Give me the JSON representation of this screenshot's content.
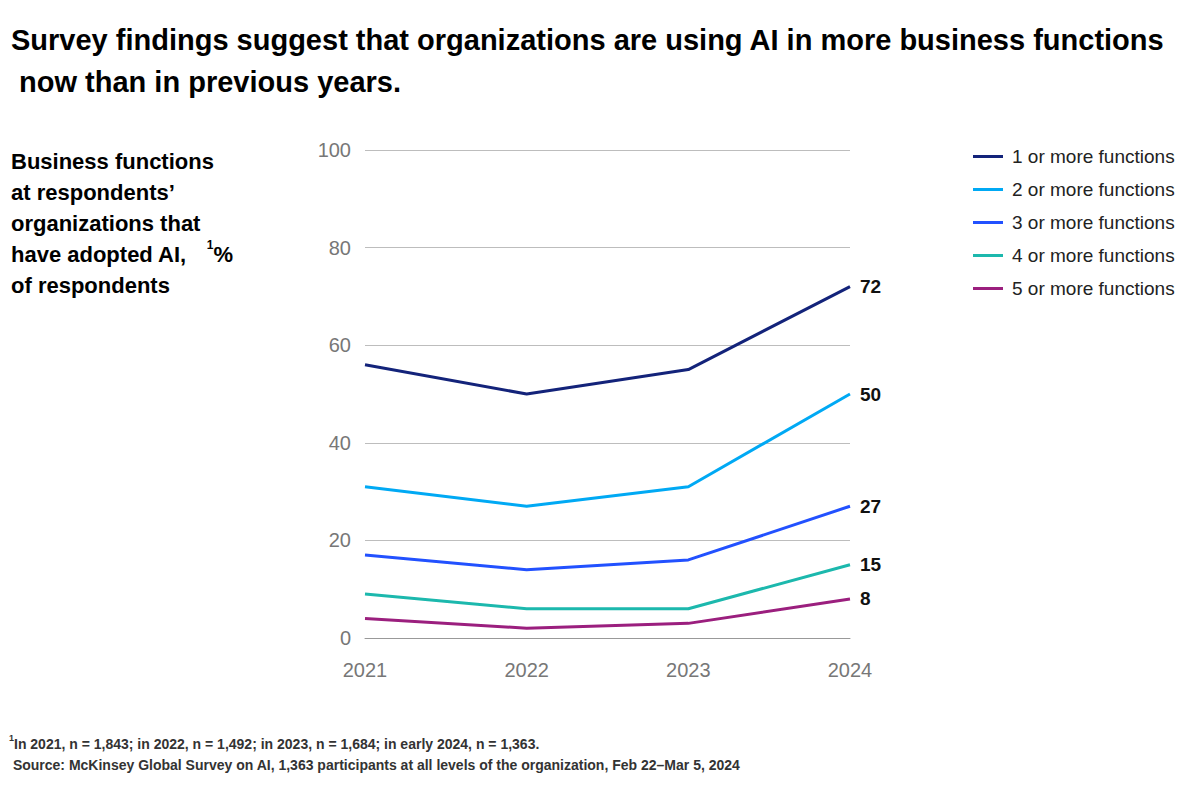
{
  "chart_data": {
    "type": "line",
    "title": "Survey findings suggest that organizations are using AI in more business functions now than in previous years.",
    "ylabel": "Business functions at respondents’ organizations that have adopted AI,",
    "ylabel_note": "1",
    "ylabel_units": "% of respondents",
    "footnote_marker": "1",
    "footnote": "In 2021, n = 1,843; in 2022, n = 1,492; in 2023, n = 1,684; in early 2024, n = 1,363.",
    "source": "Source: McKinsey Global Survey on AI, 1,363 participants at all levels of the organization, Feb 22–Mar 5, 2024",
    "categories": [
      "2021",
      "2022",
      "2023",
      "2024"
    ],
    "series": [
      {
        "name": "1 or more functions",
        "color": "#13237a",
        "values": [
          56,
          50,
          55,
          72
        ]
      },
      {
        "name": "2 or more functions",
        "color": "#00a9f4",
        "values": [
          31,
          27,
          31,
          50
        ]
      },
      {
        "name": "3 or more functions",
        "color": "#2251ff",
        "values": [
          17,
          14,
          16,
          27
        ]
      },
      {
        "name": "4 or more functions",
        "color": "#1cb8ad",
        "values": [
          9,
          6,
          6,
          15
        ]
      },
      {
        "name": "5 or more functions",
        "color": "#9b1f7e",
        "values": [
          4,
          2,
          3,
          8
        ]
      }
    ],
    "ylim": [
      0,
      100
    ],
    "yticks": [
      0,
      20,
      40,
      60,
      80,
      100
    ],
    "grid": true,
    "legend": "right",
    "data_labels": true
  }
}
